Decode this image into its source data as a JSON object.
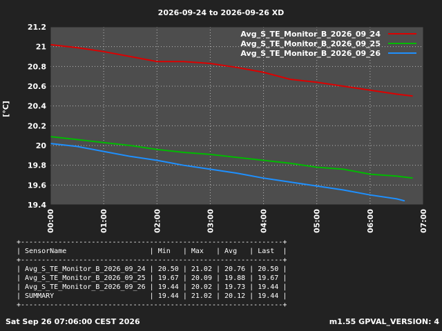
{
  "chart_data": {
    "type": "line",
    "title": "2026-09-24 to 2026-09-26 XD",
    "ylabel": "[°C]",
    "xlabel": "",
    "ylim": [
      19.4,
      21.2
    ],
    "xlim": [
      0,
      7
    ],
    "yticks": [
      "19.4",
      "19.6",
      "19.8",
      "20",
      "20.2",
      "20.4",
      "20.6",
      "20.8",
      "21",
      "21.2"
    ],
    "xticks": [
      "00:00",
      "01:00",
      "02:00",
      "03:00",
      "04:00",
      "05:00",
      "06:00",
      "07:00"
    ],
    "grid": true,
    "legend_position": "top-right",
    "series": [
      {
        "name": "Avg_S_TE_Monitor_B_2026_09_24",
        "color": "#dd0000",
        "x": [
          0,
          0.5,
          1,
          1.5,
          2,
          2.5,
          3,
          3.5,
          4,
          4.5,
          5,
          5.5,
          6,
          6.5,
          6.8
        ],
        "values": [
          21.02,
          20.99,
          20.95,
          20.9,
          20.85,
          20.85,
          20.83,
          20.79,
          20.74,
          20.67,
          20.64,
          20.6,
          20.56,
          20.52,
          20.5
        ]
      },
      {
        "name": "Avg_S_TE_Monitor_B_2026_09_25",
        "color": "#00bb00",
        "x": [
          0,
          0.5,
          1,
          1.5,
          2,
          2.5,
          3,
          3.5,
          4,
          4.5,
          5,
          5.5,
          6,
          6.5,
          6.8
        ],
        "values": [
          20.09,
          20.06,
          20.03,
          20.0,
          19.96,
          19.93,
          19.91,
          19.88,
          19.85,
          19.82,
          19.78,
          19.76,
          19.71,
          19.69,
          19.67
        ]
      },
      {
        "name": "Avg_S_TE_Monitor_B_2026_09_26",
        "color": "#1e90ff",
        "x": [
          0,
          0.5,
          1,
          1.5,
          2,
          2.5,
          3,
          3.5,
          4,
          4.5,
          5,
          5.5,
          6,
          6.5,
          6.65
        ],
        "values": [
          20.02,
          19.99,
          19.94,
          19.89,
          19.85,
          19.8,
          19.76,
          19.72,
          19.67,
          19.63,
          19.59,
          19.55,
          19.5,
          19.46,
          19.44
        ]
      }
    ]
  },
  "stats_table": {
    "headers": [
      "SensorName",
      "Min",
      "Max",
      "Avg",
      "Last"
    ],
    "rows": [
      [
        "Avg_S_TE_Monitor_B_2026_09_24",
        "20.50",
        "21.02",
        "20.76",
        "20.50"
      ],
      [
        "Avg_S_TE_Monitor_B_2026_09_25",
        "19.67",
        "20.09",
        "19.88",
        "19.67"
      ],
      [
        "Avg_S_TE_Monitor_B_2026_09_26",
        "19.44",
        "20.02",
        "19.73",
        "19.44"
      ],
      [
        "SUMMARY",
        "19.44",
        "21.02",
        "20.12",
        "19.44"
      ]
    ]
  },
  "footer": {
    "timestamp": "Sat Sep 26 07:06:00 CEST 2026",
    "version": "m1.55 GPVAL_VERSION: 4"
  },
  "colors": {
    "background": "#222222",
    "plot_area": "#4d4d4d",
    "grid": "#bbbbbb"
  }
}
